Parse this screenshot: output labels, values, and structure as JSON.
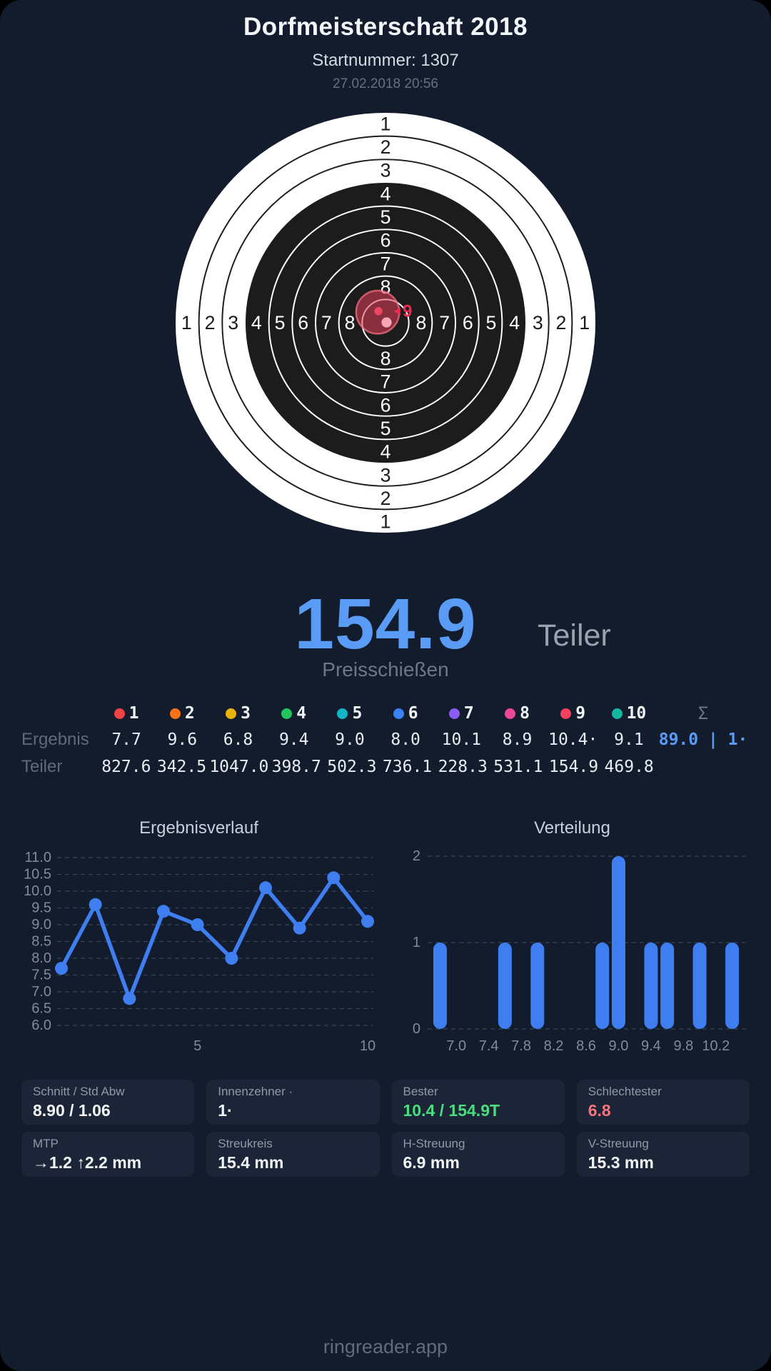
{
  "header": {
    "title": "Dorfmeisterschaft 2018",
    "subtitle": "Startnummer: 1307",
    "datetime": "27.02.2018 20:56"
  },
  "target": {
    "ring_labels": [
      "1",
      "2",
      "3",
      "4",
      "5",
      "6",
      "7",
      "8"
    ],
    "shot_marker_label": "9",
    "colors": {
      "paper": "#ffffff",
      "ink": "#1d1c1c",
      "spread_fill": "rgba(226,62,87,0.55)",
      "spread_stroke": "rgba(243,112,131,0.75)",
      "shot_dot": "#ee4560",
      "shot_dot_light": "#f6a6b4",
      "marker": "#ee2b4e"
    }
  },
  "score": {
    "value": "154.9",
    "unit": "Teiler",
    "mode": "Preisschießen"
  },
  "results": {
    "row_ergebnis_label": "Ergebnis",
    "row_teiler_label": "Teiler",
    "sum_symbol": "Σ",
    "ergebnis_sum": "89.0 | 1·",
    "shots": [
      {
        "num": "1",
        "color": "#ef4444",
        "ergebnis": "7.7",
        "teiler": "827.6"
      },
      {
        "num": "2",
        "color": "#f97316",
        "ergebnis": "9.6",
        "teiler": "342.5"
      },
      {
        "num": "3",
        "color": "#eab308",
        "ergebnis": "6.8",
        "teiler": "1047.0"
      },
      {
        "num": "4",
        "color": "#22c55e",
        "ergebnis": "9.4",
        "teiler": "398.7"
      },
      {
        "num": "5",
        "color": "#10b5c9",
        "ergebnis": "9.0",
        "teiler": "502.3"
      },
      {
        "num": "6",
        "color": "#3b82f6",
        "ergebnis": "8.0",
        "teiler": "736.1"
      },
      {
        "num": "7",
        "color": "#8b5cf6",
        "ergebnis": "10.1",
        "teiler": "228.3"
      },
      {
        "num": "8",
        "color": "#ec4899",
        "ergebnis": "8.9",
        "teiler": "531.1"
      },
      {
        "num": "9",
        "color": "#f43f5e",
        "ergebnis": "10.4·",
        "teiler": "154.9"
      },
      {
        "num": "10",
        "color": "#14b8a0",
        "ergebnis": "9.1",
        "teiler": "469.8"
      }
    ]
  },
  "chart_data": [
    {
      "type": "line",
      "title": "Ergebnisverlauf",
      "x": [
        1,
        2,
        3,
        4,
        5,
        6,
        7,
        8,
        9,
        10
      ],
      "values": [
        7.7,
        9.6,
        6.8,
        9.4,
        9.0,
        8.0,
        10.1,
        8.9,
        10.4,
        9.1
      ],
      "ylim": [
        6.0,
        11.0
      ],
      "ytick_step": 0.5,
      "xticks": [
        5,
        10
      ],
      "grid": "dashed",
      "color": "#3e7ef1"
    },
    {
      "type": "bar",
      "title": "Verteilung",
      "bin_centers": [
        6.8,
        7.6,
        8.0,
        8.8,
        9.0,
        9.4,
        9.6,
        10.0,
        10.4
      ],
      "values": [
        1,
        1,
        1,
        1,
        2,
        1,
        1,
        1,
        1
      ],
      "xticks": [
        7.0,
        7.4,
        7.8,
        8.2,
        8.6,
        9.0,
        9.4,
        9.8,
        10.2
      ],
      "yticks": [
        0,
        1,
        2
      ],
      "ylim": [
        0,
        2
      ],
      "xlim": [
        6.62,
        10.58
      ],
      "grid": "dashed",
      "color": "#3e7ef1"
    }
  ],
  "stats": [
    {
      "label": "Schnitt / Std Abw",
      "value": "8.90 / 1.06",
      "color": "default"
    },
    {
      "label": "Innenzehner ·",
      "value": "1·",
      "color": "default"
    },
    {
      "label": "Bester",
      "value": "10.4 / 154.9T",
      "color": "green"
    },
    {
      "label": "Schlechtester",
      "value": "6.8",
      "color": "red"
    },
    {
      "label": "MTP",
      "value": "→1.2 ↑2.2 mm",
      "color": "default"
    },
    {
      "label": "Streukreis",
      "value": "15.4 mm",
      "color": "default"
    },
    {
      "label": "H-Streuung",
      "value": "6.9 mm",
      "color": "default"
    },
    {
      "label": "V-Streuung",
      "value": "15.3 mm",
      "color": "default"
    }
  ],
  "footer": {
    "link": "ringreader.app"
  }
}
